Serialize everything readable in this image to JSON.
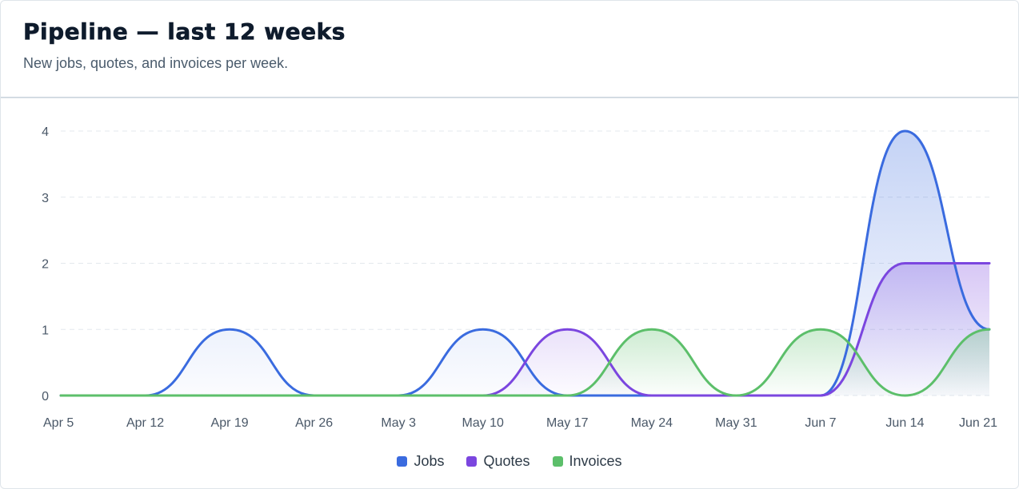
{
  "header": {
    "title": "Pipeline — last 12 weeks",
    "subtitle": "New jobs, quotes, and invoices per week."
  },
  "chart_data": {
    "type": "area",
    "categories": [
      "Apr 5",
      "Apr 12",
      "Apr 19",
      "Apr 26",
      "May 3",
      "May 10",
      "May 17",
      "May 24",
      "May 31",
      "Jun 7",
      "Jun 14",
      "Jun 21"
    ],
    "series": [
      {
        "name": "Jobs",
        "color": "#3a6bdf",
        "values": [
          0,
          0,
          1,
          0,
          0,
          1,
          0,
          0,
          0,
          0,
          4,
          1
        ]
      },
      {
        "name": "Quotes",
        "color": "#7b46df",
        "values": [
          0,
          0,
          0,
          0,
          0,
          0,
          1,
          0,
          0,
          0,
          2,
          2
        ]
      },
      {
        "name": "Invoices",
        "color": "#5cbf6a",
        "values": [
          0,
          0,
          0,
          0,
          0,
          0,
          0,
          1,
          0,
          1,
          0,
          1
        ]
      }
    ],
    "y_ticks": [
      "0",
      "1",
      "2",
      "3",
      "4"
    ],
    "ylim": [
      0,
      4
    ],
    "grid": true,
    "legend": "bottom-center",
    "title": "",
    "xlabel": "",
    "ylabel": ""
  }
}
